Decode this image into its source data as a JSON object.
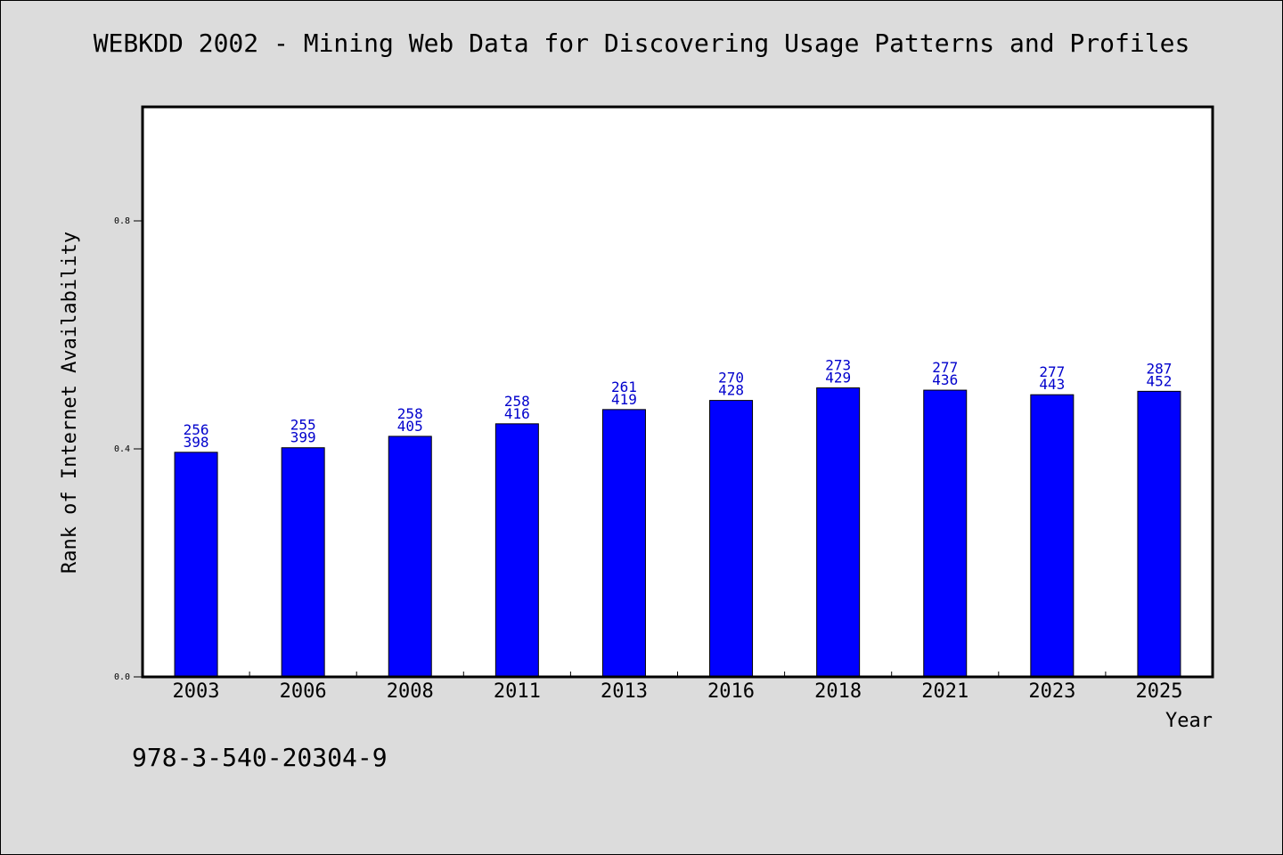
{
  "page": {
    "title": "WEBKDD 2002 - Mining Web Data for Discovering Usage Patterns and Profiles",
    "footer_text": "978-3-540-20304-9",
    "background": "#dcdcdc"
  },
  "chart_data": {
    "type": "bar",
    "title": "WEBKDD 2002 - Mining Web Data for Discovering Usage Patterns and Profiles",
    "xlabel": "Year",
    "ylabel": "Rank of Internet Availability",
    "categories": [
      "2003",
      "2006",
      "2008",
      "2011",
      "2013",
      "2016",
      "2018",
      "2021",
      "2023",
      "2025"
    ],
    "values": [
      0.394,
      0.402,
      0.422,
      0.444,
      0.469,
      0.485,
      0.507,
      0.503,
      0.495,
      0.501
    ],
    "labels_top": [
      "256",
      "255",
      "258",
      "258",
      "261",
      "270",
      "273",
      "277",
      "277",
      "287"
    ],
    "labels_bottom": [
      "398",
      "399",
      "405",
      "416",
      "419",
      "428",
      "429",
      "436",
      "443",
      "452"
    ],
    "ylim": [
      0,
      1.0
    ],
    "yticks": [
      0.0,
      0.4,
      0.8
    ],
    "ytick_labels": [
      "0.0",
      "0.4",
      "0.8"
    ],
    "grid": false,
    "colors": {
      "bar": "#0000ff",
      "label": "#0000cc",
      "plot_bg": "#ffffff"
    }
  }
}
